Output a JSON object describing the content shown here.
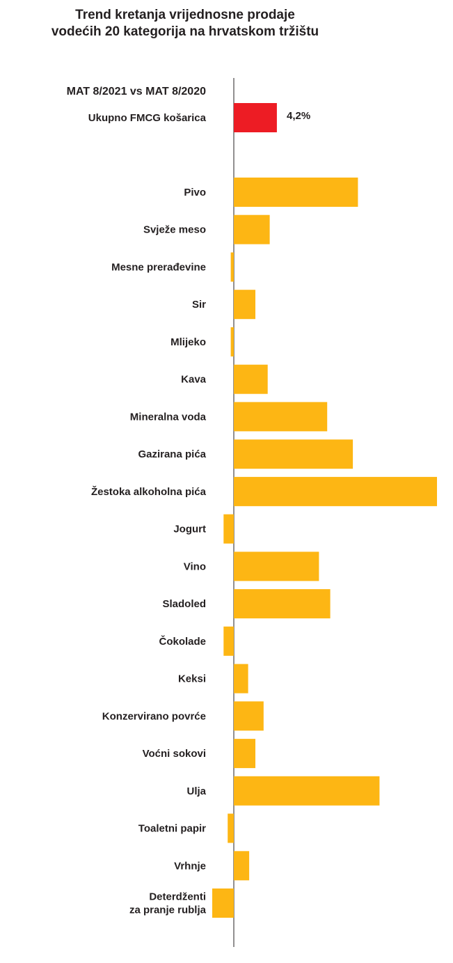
{
  "chart_data": {
    "type": "bar",
    "orientation": "horizontal",
    "title_lines": [
      "Trend kretanja vrijednosne prodaje",
      "vodećih 20 kategorija na hrvatskom tržištu"
    ],
    "subtitle": "MAT 8/2021 vs MAT 8/2020",
    "total": {
      "category": "Ukupno FMCG košarica",
      "value": 4.2,
      "label": "4,2%",
      "color": "#ed1c24"
    },
    "categories": [
      "Pivo",
      "Svježe meso",
      "Mesne prerađevine",
      "Sir",
      "Mlijeko",
      "Kava",
      "Mineralna voda",
      "Gazirana pića",
      "Žestoka alkoholna pića",
      "Jogurt",
      "Vino",
      "Sladoled",
      "Čokolade",
      "Keksi",
      "Konzervirano povrće",
      "Voćni sokovi",
      "Ulja",
      "Toaletni papir",
      "Vrhnje",
      [
        "Deterdženti",
        "za pranje rublja"
      ]
    ],
    "values": [
      12.1,
      3.5,
      -0.3,
      2.1,
      -0.3,
      3.3,
      9.1,
      11.6,
      19.8,
      -1.0,
      8.3,
      9.4,
      -1.0,
      1.4,
      2.9,
      2.1,
      14.2,
      -0.6,
      1.5,
      -2.1
    ],
    "bar_color": "#fdb614",
    "xlabel": "",
    "ylabel": "",
    "grid": false,
    "legend": "none"
  }
}
